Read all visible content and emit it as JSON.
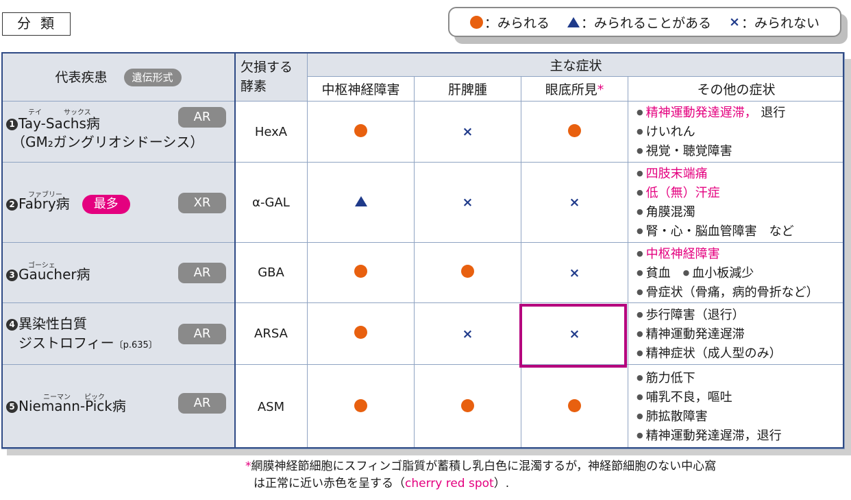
{
  "section_title": "分類",
  "legend": {
    "seen": "：みられる",
    "sometimes": "：みられることがある",
    "not_seen": "：みられない",
    "cross_symbol": "×"
  },
  "colors": {
    "dot": "#e8600f",
    "triangle": "#1f3a8a",
    "pink": "#e4007f",
    "highlight": "#b5007d"
  },
  "header": {
    "disease": "代表疾患",
    "inheritance": "遺伝形式",
    "enzyme_line1": "欠損する",
    "enzyme_line2": "酵素",
    "main_symptoms": "主な症状",
    "cns": "中枢神経障害",
    "hsm": "肝脾腫",
    "fundus": "眼底所見",
    "fundus_mark": "*",
    "other": "その他の症状"
  },
  "rows": [
    {
      "num": "1",
      "ruby": [
        "テイ",
        "サックス"
      ],
      "name_line1": "Tay-Sachs病",
      "name_line2": "（GM₂ガングリオシドーシス）",
      "inheritance": "AR",
      "enzyme": "HexA",
      "cns": "dot",
      "hsm": "cross",
      "fundus": "dot",
      "other": [
        "精神運動発達遅滞，",
        "退行",
        "けいれん",
        "視覚・聴覚障害"
      ]
    },
    {
      "num": "2",
      "ruby": [
        "ファブリー"
      ],
      "name_line1": "Fabry病",
      "badge": "最多",
      "inheritance": "XR",
      "enzyme": "α-GAL",
      "cns": "triangle",
      "hsm": "cross",
      "fundus": "cross",
      "other": [
        "四肢末端痛",
        "低（無）汗症",
        "角膜混濁",
        "腎・心・脳血管障害　など"
      ]
    },
    {
      "num": "3",
      "ruby": [
        "ゴーシェ"
      ],
      "name_line1": "Gaucher病",
      "inheritance": "AR",
      "enzyme": "GBA",
      "cns": "dot",
      "hsm": "dot",
      "fundus": "cross",
      "other": [
        "中枢神経障害",
        "貧血",
        "血小板減少",
        "骨症状（骨痛，病的骨折など）"
      ]
    },
    {
      "num": "4",
      "name_line1": "異染性白質",
      "name_line2": "ジストロフィー",
      "ref": "〔p.635〕",
      "inheritance": "AR",
      "enzyme": "ARSA",
      "cns": "dot",
      "hsm": "cross",
      "fundus": "cross",
      "other": [
        "歩行障害（退行）",
        "精神運動発達遅滞",
        "精神症状（成人型のみ）"
      ]
    },
    {
      "num": "5",
      "ruby": [
        "ニーマン",
        "ピック"
      ],
      "name_line1": "Niemann-Pick病",
      "inheritance": "AR",
      "enzyme": "ASM",
      "cns": "dot",
      "hsm": "dot",
      "fundus": "dot",
      "other": [
        "筋力低下",
        "哺乳不良，嘔吐",
        "肺拡散障害",
        "精神運動発達遅滞，退行"
      ]
    }
  ],
  "footnote": {
    "mark": "*",
    "line1": "網膜神経節細胞にスフィンゴ脂質が蓄積し乳白色に混濁するが，神経節細胞のない中心窩",
    "line2_a": "は正常に近い赤色を呈する（",
    "line2_pink": "cherry red spot",
    "line2_b": "）."
  }
}
